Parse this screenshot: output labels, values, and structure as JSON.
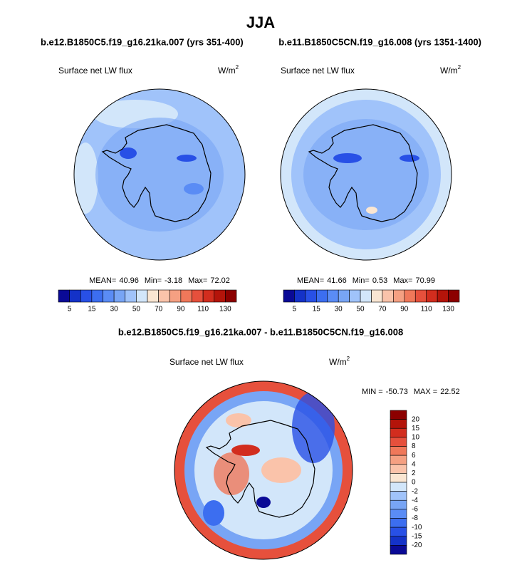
{
  "title": "JJA",
  "subtitle_left": "b.e12.B1850C5.f19_g16.21ka.007 (yrs 351-400)",
  "subtitle_right": "b.e11.B1850C5CN.f19_g16.008 (yrs 1351-1400)",
  "panels": [
    {
      "label": "Surface net LW flux",
      "units": "W/m",
      "units_sup": "2",
      "stats": {
        "mean_label": "MEAN=",
        "mean": 40.96,
        "min_label": "Min=",
        "min": -3.18,
        "max_label": "Max=",
        "max": 72.02
      }
    },
    {
      "label": "Surface net LW flux",
      "units": "W/m",
      "units_sup": "2",
      "stats": {
        "mean_label": "MEAN=",
        "mean": 41.66,
        "min_label": "Min=",
        "min": 0.53,
        "max_label": "Max=",
        "max": 70.99
      }
    }
  ],
  "colorbar": {
    "labels": [
      5,
      15,
      30,
      50,
      70,
      90,
      110,
      130
    ],
    "colors": [
      "#0a0a96",
      "#1432c8",
      "#2850e6",
      "#3c6ef0",
      "#5a8cf5",
      "#78a5f5",
      "#a0c3fa",
      "#d2e6fa",
      "#fae6d2",
      "#fac3aa",
      "#f5a082",
      "#f0785a",
      "#e6503c",
      "#d22d1e",
      "#b4140a",
      "#8c0000"
    ]
  },
  "difference": {
    "title": "b.e12.B1850C5.f19_g16.21ka.007 - b.e11.B1850C5CN.f19_g16.008",
    "label": "Surface net LW flux",
    "units": "W/m",
    "units_sup": "2",
    "stats": {
      "min_label": "MIN =",
      "min": -50.73,
      "max_label": "MAX =",
      "max": 22.52
    },
    "colorbar": {
      "labels": [
        20,
        15,
        10,
        8,
        6,
        4,
        2,
        0,
        -2,
        -4,
        -6,
        -8,
        -10,
        -15,
        -20
      ],
      "colors": [
        "#8c0000",
        "#b4140a",
        "#d22d1e",
        "#e6503c",
        "#f0785a",
        "#f5a082",
        "#fac3aa",
        "#fae6d2",
        "#d2e6fa",
        "#a0c3fa",
        "#78a5f5",
        "#5a8cf5",
        "#3c6ef0",
        "#2850e6",
        "#1432c8",
        "#0a0a96"
      ]
    }
  }
}
